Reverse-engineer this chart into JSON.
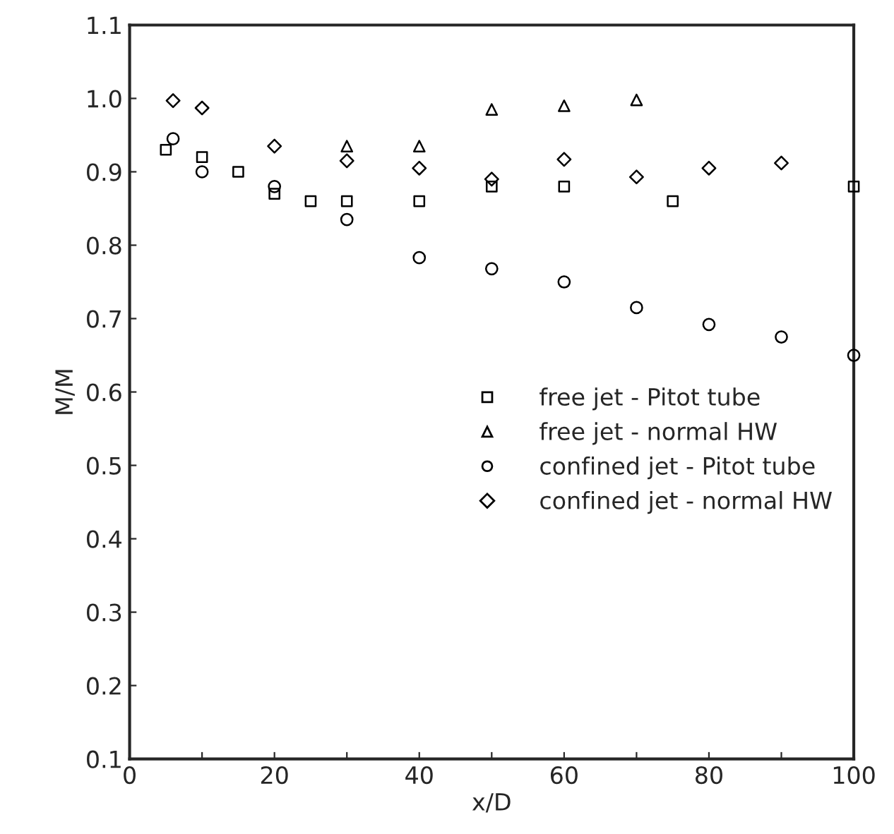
{
  "chart_data": {
    "type": "scatter",
    "xlabel": "x/D",
    "ylabel": "M/M",
    "xlim": [
      0,
      100
    ],
    "ylim": [
      0.1,
      1.1
    ],
    "xticks": [
      0,
      {
        "value": 10,
        "label": null
      },
      20,
      {
        "value": 30,
        "label": null
      },
      40,
      {
        "value": 50,
        "label": null
      },
      60,
      {
        "value": 70,
        "label": null
      },
      80,
      {
        "value": 90,
        "label": null
      },
      100
    ],
    "yticks": [
      0.1,
      0.2,
      0.3,
      0.4,
      0.5,
      0.6,
      0.7,
      0.8,
      0.9,
      {
        "value": 1.0,
        "label": "1.0"
      },
      1.1
    ],
    "grid": false,
    "legend": "center right",
    "series": [
      {
        "name": "free jet - Pitot tube",
        "color": "#000000",
        "marker": "square",
        "x": [
          5,
          10,
          15,
          20,
          25,
          30,
          40,
          50,
          60,
          75,
          100
        ],
        "values": [
          0.93,
          0.92,
          0.9,
          0.87,
          0.86,
          0.86,
          0.86,
          0.88,
          0.88,
          0.86,
          0.88
        ]
      },
      {
        "name": "free jet - normal HW",
        "color": "#000000",
        "marker": "triangle",
        "x": [
          30,
          40,
          50,
          60,
          70
        ],
        "values": [
          0.935,
          0.935,
          0.985,
          0.99,
          0.998
        ]
      },
      {
        "name": "confined jet - Pitot tube",
        "color": "#000000",
        "marker": "circle",
        "x": [
          6,
          10,
          20,
          30,
          40,
          50,
          60,
          70,
          80,
          90,
          100
        ],
        "values": [
          0.945,
          0.9,
          0.88,
          0.835,
          0.783,
          0.768,
          0.75,
          0.715,
          0.692,
          0.675,
          0.65
        ]
      },
      {
        "name": "confined jet - normal HW",
        "color": "#000000",
        "marker": "diamond",
        "x": [
          6,
          10,
          20,
          30,
          40,
          50,
          60,
          70,
          80,
          90
        ],
        "values": [
          0.997,
          0.987,
          0.935,
          0.915,
          0.905,
          0.89,
          0.917,
          0.893,
          0.905,
          0.912
        ]
      }
    ]
  }
}
